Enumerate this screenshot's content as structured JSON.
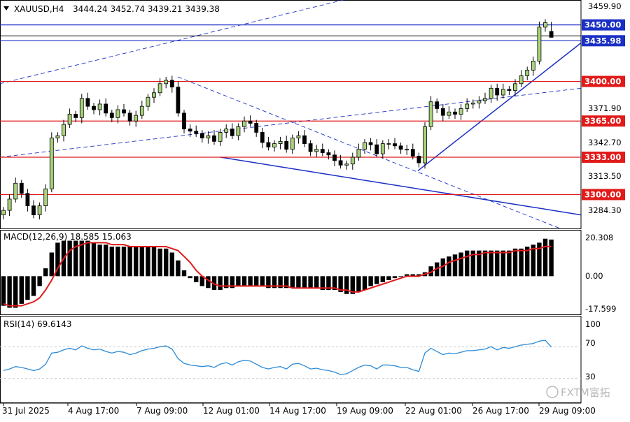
{
  "header": {
    "symbol": "XAUUSD,H4",
    "ohlc": "3444.24 3452.74 3439.21 3439.38",
    "menu_arrow": "triangle-down-icon"
  },
  "colors": {
    "bull": "#a8d37a",
    "bear": "#000000",
    "level": "#e11a1a",
    "trend": "#1a2fc4",
    "macd_signal": "#e11a1a",
    "rsi": "#2b8bd8"
  },
  "price_axis": {
    "ticks": [
      "3459.90",
      "3371.90",
      "3342.70",
      "3313.50",
      "3284.30"
    ]
  },
  "levels": [
    {
      "label": "3450.00",
      "value": 3450.0,
      "style": "box-blue"
    },
    {
      "label": "3435.98",
      "value": 3435.98,
      "style": "box-blue"
    },
    {
      "label": "3400.00",
      "value": 3400.0,
      "style": "box-red"
    },
    {
      "label": "3365.00",
      "value": 3365.0,
      "style": "box-red"
    },
    {
      "label": "3333.00",
      "value": 3333.0,
      "style": "box-red"
    },
    {
      "label": "3300.00",
      "value": 3300.0,
      "style": "box-red"
    }
  ],
  "macd": {
    "title": "MACD(12,26,9) 18.585 15.063",
    "ticks": [
      "20.308",
      "0.00",
      "-17.599"
    ]
  },
  "rsi": {
    "title": "RSI(14) 69.6143",
    "ticks": [
      "100",
      "70",
      "30"
    ]
  },
  "x_axis": {
    "labels": [
      "31 Jul 2025",
      "4 Aug 17:00",
      "7 Aug 09:00",
      "12 Aug 01:00",
      "14 Aug 17:00",
      "19 Aug 09:00",
      "22 Aug 01:00",
      "26 Aug 17:00",
      "29 Aug 09:00"
    ]
  },
  "watermark": "FXTM富拓",
  "chart_data": [
    {
      "type": "candlestick",
      "title": "XAUUSD,H4",
      "last_bar_ohlc": [
        3444.24,
        3452.74,
        3439.21,
        3439.38
      ],
      "ylim": [
        3270.0,
        3472.0
      ],
      "closes": [
        3286,
        3296,
        3310,
        3301,
        3290,
        3282,
        3290,
        3305,
        3350,
        3352,
        3362,
        3371,
        3368,
        3385,
        3378,
        3375,
        3380,
        3372,
        3368,
        3375,
        3372,
        3365,
        3370,
        3378,
        3386,
        3390,
        3398,
        3401,
        3395,
        3372,
        3358,
        3356,
        3354,
        3350,
        3352,
        3347,
        3355,
        3358,
        3352,
        3360,
        3365,
        3363,
        3355,
        3346,
        3342,
        3345,
        3347,
        3340,
        3350,
        3352,
        3345,
        3338,
        3340,
        3337,
        3335,
        3330,
        3326,
        3327,
        3333,
        3340,
        3346,
        3344,
        3336,
        3345,
        3345,
        3343,
        3340,
        3340,
        3334,
        3328,
        3360,
        3382,
        3376,
        3370,
        3373,
        3371,
        3376,
        3380,
        3381,
        3383,
        3385,
        3394,
        3388,
        3393,
        3392,
        3398,
        3405,
        3410,
        3418,
        3448,
        3452,
        3439
      ],
      "levels": [
        3450.0,
        3435.98,
        3400.0,
        3365.0,
        3333.0,
        3300.0
      ]
    },
    {
      "type": "bar",
      "title": "MACD(12,26,9)",
      "series": [
        {
          "name": "macd",
          "values": [
            -15,
            -16,
            -16,
            -14,
            -12,
            -10,
            -5,
            4,
            12,
            17,
            18,
            18,
            18,
            18,
            18,
            17,
            16,
            16,
            15,
            15,
            15,
            15,
            15,
            15,
            15,
            15,
            14,
            14,
            12,
            8,
            3,
            -1,
            -3,
            -5,
            -6,
            -7,
            -7,
            -6,
            -6,
            -5,
            -5,
            -5,
            -5,
            -5,
            -6,
            -6,
            -6,
            -6,
            -6,
            -6,
            -6,
            -6,
            -6,
            -7,
            -7,
            -7,
            -8,
            -9,
            -9,
            -8,
            -7,
            -5,
            -4,
            -3,
            -2,
            -1,
            0,
            1,
            1,
            1,
            2,
            5,
            7,
            9,
            10,
            11,
            12,
            13,
            13,
            13,
            13,
            13,
            13,
            13,
            13,
            14,
            14,
            15,
            16,
            17,
            19,
            18.585
          ]
        },
        {
          "name": "signal",
          "values": [
            -14,
            -15,
            -15,
            -15,
            -14,
            -13,
            -11,
            -7,
            -2,
            4,
            9,
            13,
            15,
            16,
            17,
            17,
            17,
            17,
            16,
            16,
            16,
            15,
            15,
            15,
            15,
            15,
            15,
            15,
            14,
            13,
            10,
            7,
            3,
            0,
            -2,
            -4,
            -5,
            -5,
            -5,
            -5,
            -5,
            -5,
            -5,
            -5,
            -5,
            -5,
            -5,
            -5,
            -6,
            -6,
            -6,
            -6,
            -6,
            -6,
            -6,
            -6,
            -7,
            -7,
            -8,
            -8,
            -7,
            -6,
            -5,
            -4,
            -3,
            -2,
            -1,
            0,
            0,
            0,
            1,
            2,
            4,
            5,
            7,
            8,
            9,
            10,
            11,
            11,
            12,
            12,
            12,
            12,
            12,
            13,
            13,
            13,
            14,
            14,
            15.063,
            15.063
          ]
        }
      ],
      "ylim": [
        -17.599,
        20.308
      ]
    },
    {
      "type": "line",
      "title": "RSI(14)",
      "series": [
        {
          "name": "RSI(14)",
          "values": [
            40,
            42,
            45,
            44,
            42,
            40,
            42,
            48,
            62,
            63,
            66,
            68,
            66,
            71,
            68,
            66,
            67,
            64,
            62,
            64,
            63,
            60,
            62,
            65,
            67,
            68,
            70,
            71,
            67,
            55,
            49,
            47,
            46,
            45,
            46,
            44,
            48,
            50,
            47,
            51,
            53,
            52,
            48,
            44,
            42,
            44,
            45,
            42,
            48,
            49,
            46,
            42,
            43,
            41,
            40,
            38,
            35,
            36,
            40,
            44,
            47,
            46,
            42,
            47,
            47,
            46,
            44,
            44,
            41,
            39,
            62,
            68,
            64,
            60,
            62,
            61,
            63,
            65,
            65,
            66,
            67,
            70,
            66,
            69,
            68,
            70,
            72,
            73,
            74,
            77,
            78,
            69.6143
          ]
        }
      ],
      "ylim": [
        0,
        100
      ]
    }
  ]
}
